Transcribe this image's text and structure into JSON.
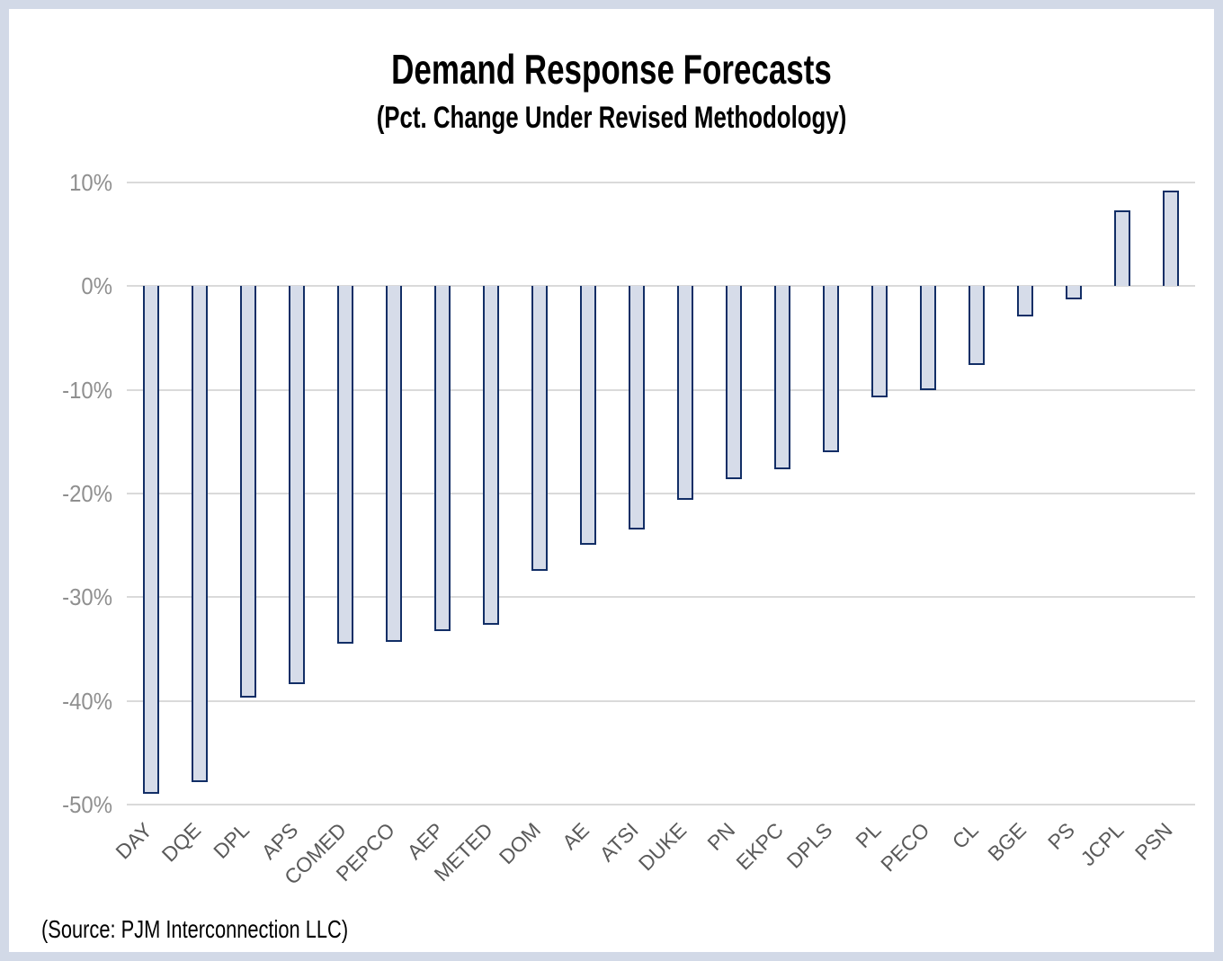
{
  "title": "Demand Response Forecasts",
  "subtitle": "(Pct. Change Under Revised Methodology)",
  "source": "(Source: PJM Interconnection LLC)",
  "chart_data": {
    "type": "bar",
    "title": "Demand Response Forecasts",
    "subtitle": "(Pct. Change Under Revised Methodology)",
    "categories": [
      "DAY",
      "DQE",
      "DPL",
      "APS",
      "COMED",
      "PEPCO",
      "AEP",
      "METED",
      "DOM",
      "AE",
      "ATSI",
      "DUKE",
      "PN",
      "EKPC",
      "DPLS",
      "PL",
      "PECO",
      "CL",
      "BGE",
      "PS",
      "JCPL",
      "PSN"
    ],
    "values": [
      -49.0,
      -47.8,
      -39.7,
      -38.4,
      -34.5,
      -34.3,
      -33.3,
      -32.7,
      -27.5,
      -24.9,
      -23.5,
      -20.6,
      -18.6,
      -17.7,
      -16.0,
      -10.7,
      -10.0,
      -7.6,
      -2.9,
      -1.3,
      7.3,
      9.2
    ],
    "xlabel": "",
    "ylabel": "",
    "y_tick_labels": [
      "10%",
      "0%",
      "-10%",
      "-20%",
      "-30%",
      "-40%",
      "-50%"
    ],
    "y_tick_values": [
      10,
      0,
      -10,
      -20,
      -30,
      -40,
      -50
    ],
    "ylim": [
      -50,
      10
    ],
    "grid": true,
    "legend": "none",
    "bar_fill_color": "#d6dce9",
    "bar_border_color": "#122e66",
    "gridline_color": "#dadada",
    "y_label_color": "#8f8f8f",
    "x_label_color": "#595959",
    "frame_color": "#d2d9e7"
  }
}
